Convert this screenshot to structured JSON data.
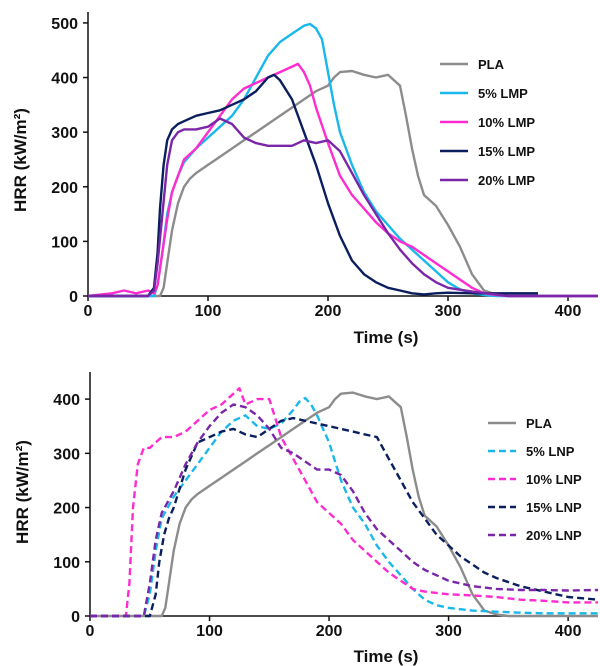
{
  "chart_data": [
    {
      "type": "line",
      "xlabel": "Time (s)",
      "ylabel": "HRR (kW/m²)",
      "xlim": [
        0,
        425
      ],
      "ylim": [
        0,
        520
      ],
      "xticks": [
        0,
        100,
        200,
        300,
        400
      ],
      "yticks": [
        0,
        100,
        200,
        300,
        400,
        500
      ],
      "legend_position": "right",
      "series": [
        {
          "name": "PLA",
          "color": "#8c8c8c",
          "dash": "solid",
          "x": [
            0,
            60,
            63,
            66,
            70,
            75,
            80,
            85,
            90,
            100,
            110,
            120,
            130,
            140,
            150,
            160,
            170,
            180,
            190,
            200,
            205,
            210,
            220,
            230,
            240,
            250,
            255,
            260,
            265,
            270,
            275,
            280,
            290,
            300,
            310,
            320,
            330,
            340,
            350,
            425
          ],
          "y": [
            0,
            0,
            15,
            60,
            120,
            170,
            200,
            215,
            225,
            240,
            255,
            270,
            285,
            300,
            315,
            330,
            345,
            360,
            375,
            385,
            400,
            410,
            412,
            405,
            400,
            405,
            395,
            385,
            330,
            270,
            220,
            185,
            165,
            130,
            90,
            40,
            10,
            3,
            0,
            0
          ]
        },
        {
          "name": "5% LMP",
          "color": "#1ab8ea",
          "dash": "solid",
          "x": [
            0,
            55,
            58,
            62,
            66,
            70,
            75,
            80,
            90,
            100,
            110,
            120,
            130,
            140,
            150,
            160,
            170,
            180,
            185,
            190,
            195,
            200,
            205,
            210,
            220,
            230,
            240,
            250,
            260,
            270,
            280,
            290,
            300,
            310,
            320,
            330,
            340,
            350,
            425
          ],
          "y": [
            0,
            0,
            20,
            80,
            150,
            190,
            220,
            245,
            270,
            290,
            310,
            330,
            360,
            400,
            440,
            465,
            480,
            495,
            498,
            490,
            470,
            410,
            350,
            300,
            240,
            190,
            155,
            130,
            105,
            85,
            65,
            45,
            25,
            12,
            5,
            2,
            0,
            0,
            0
          ]
        },
        {
          "name": "10% LMP",
          "color": "#ff2ccf",
          "dash": "solid",
          "x": [
            0,
            20,
            30,
            40,
            50,
            55,
            58,
            62,
            66,
            70,
            75,
            80,
            90,
            100,
            110,
            120,
            130,
            140,
            150,
            160,
            170,
            175,
            180,
            185,
            190,
            200,
            210,
            220,
            230,
            240,
            250,
            260,
            270,
            280,
            290,
            300,
            310,
            320,
            330,
            340,
            350,
            425
          ],
          "y": [
            0,
            5,
            10,
            5,
            10,
            5,
            20,
            80,
            140,
            190,
            220,
            250,
            270,
            300,
            330,
            360,
            380,
            390,
            400,
            410,
            420,
            425,
            410,
            385,
            345,
            280,
            220,
            185,
            160,
            135,
            115,
            100,
            90,
            75,
            60,
            45,
            30,
            15,
            5,
            2,
            0,
            0
          ]
        },
        {
          "name": "15% LMP",
          "color": "#0b1f5e",
          "dash": "solid",
          "x": [
            0,
            50,
            55,
            58,
            60,
            63,
            66,
            70,
            75,
            80,
            90,
            100,
            110,
            120,
            130,
            140,
            150,
            155,
            160,
            170,
            180,
            190,
            200,
            210,
            220,
            230,
            240,
            250,
            260,
            270,
            280,
            290,
            300,
            320,
            340,
            360,
            375
          ],
          "y": [
            0,
            0,
            15,
            80,
            160,
            240,
            285,
            305,
            315,
            320,
            330,
            335,
            340,
            350,
            360,
            375,
            400,
            405,
            395,
            360,
            300,
            240,
            170,
            110,
            65,
            40,
            25,
            15,
            10,
            5,
            3,
            5,
            6,
            5,
            5,
            5,
            5
          ]
        },
        {
          "name": "20% LMP",
          "color": "#7a26a8",
          "dash": "solid",
          "x": [
            0,
            50,
            55,
            58,
            62,
            66,
            70,
            75,
            80,
            90,
            100,
            110,
            120,
            130,
            140,
            150,
            160,
            170,
            180,
            190,
            200,
            205,
            210,
            220,
            230,
            240,
            250,
            260,
            270,
            280,
            290,
            300,
            320,
            340,
            350,
            425
          ],
          "y": [
            0,
            0,
            10,
            60,
            150,
            240,
            285,
            300,
            305,
            305,
            310,
            325,
            315,
            290,
            280,
            275,
            275,
            275,
            285,
            280,
            285,
            275,
            265,
            225,
            185,
            150,
            115,
            85,
            60,
            40,
            25,
            15,
            8,
            3,
            0,
            0
          ]
        }
      ]
    },
    {
      "type": "line",
      "xlabel": "Time (s)",
      "ylabel": "HRR (kW/m²)",
      "xlim": [
        0,
        425
      ],
      "ylim": [
        0,
        450
      ],
      "xticks": [
        0,
        100,
        200,
        300,
        400
      ],
      "yticks": [
        0,
        100,
        200,
        300,
        400
      ],
      "legend_position": "right",
      "series": [
        {
          "name": "PLA",
          "color": "#8c8c8c",
          "dash": "solid",
          "x": [
            0,
            60,
            63,
            66,
            70,
            75,
            80,
            85,
            90,
            100,
            110,
            120,
            130,
            140,
            150,
            160,
            170,
            180,
            190,
            200,
            205,
            210,
            220,
            230,
            240,
            250,
            255,
            260,
            265,
            270,
            275,
            280,
            290,
            300,
            310,
            320,
            330,
            340,
            350,
            425
          ],
          "y": [
            0,
            0,
            15,
            60,
            120,
            170,
            200,
            215,
            225,
            240,
            255,
            270,
            285,
            300,
            315,
            330,
            345,
            360,
            375,
            385,
            400,
            410,
            412,
            405,
            400,
            405,
            395,
            385,
            330,
            270,
            220,
            185,
            165,
            130,
            90,
            40,
            10,
            3,
            0,
            0
          ]
        },
        {
          "name": "5% LNP",
          "color": "#1ab8ea",
          "dash": "dashed",
          "x": [
            0,
            45,
            50,
            55,
            60,
            65,
            70,
            80,
            90,
            100,
            110,
            120,
            130,
            140,
            150,
            160,
            170,
            175,
            180,
            185,
            190,
            200,
            210,
            220,
            230,
            240,
            250,
            260,
            270,
            280,
            290,
            300,
            320,
            340,
            360,
            380,
            400,
            425
          ],
          "y": [
            0,
            0,
            40,
            120,
            180,
            200,
            220,
            250,
            280,
            310,
            340,
            360,
            370,
            350,
            345,
            355,
            380,
            395,
            402,
            390,
            370,
            320,
            250,
            200,
            170,
            130,
            100,
            75,
            50,
            30,
            20,
            15,
            10,
            8,
            6,
            5,
            5,
            5
          ]
        },
        {
          "name": "10% LNP",
          "color": "#ff2ccf",
          "dash": "dashed",
          "x": [
            0,
            30,
            33,
            36,
            40,
            45,
            50,
            55,
            60,
            70,
            80,
            90,
            100,
            110,
            120,
            125,
            130,
            140,
            150,
            160,
            170,
            180,
            190,
            200,
            210,
            220,
            230,
            240,
            250,
            260,
            270,
            280,
            300,
            320,
            340,
            360,
            380,
            400,
            425
          ],
          "y": [
            0,
            0,
            60,
            200,
            280,
            310,
            310,
            320,
            330,
            330,
            340,
            360,
            380,
            390,
            410,
            420,
            390,
            400,
            400,
            330,
            290,
            250,
            210,
            190,
            170,
            140,
            120,
            100,
            80,
            65,
            50,
            45,
            40,
            38,
            35,
            30,
            28,
            25,
            25
          ]
        },
        {
          "name": "15% LNP",
          "color": "#0b1f5e",
          "dash": "dashed",
          "x": [
            0,
            50,
            55,
            58,
            62,
            66,
            70,
            80,
            90,
            100,
            110,
            120,
            130,
            140,
            150,
            160,
            170,
            180,
            190,
            200,
            210,
            220,
            230,
            240,
            250,
            260,
            270,
            280,
            290,
            300,
            310,
            320,
            330,
            340,
            360,
            380,
            400,
            425
          ],
          "y": [
            0,
            0,
            40,
            100,
            150,
            180,
            200,
            270,
            320,
            330,
            340,
            345,
            335,
            330,
            345,
            360,
            365,
            360,
            355,
            350,
            345,
            340,
            335,
            330,
            290,
            250,
            210,
            180,
            150,
            130,
            110,
            95,
            80,
            70,
            55,
            45,
            35,
            30
          ]
        },
        {
          "name": "20% LNP",
          "color": "#7a26a8",
          "dash": "dashed",
          "x": [
            0,
            45,
            50,
            55,
            60,
            65,
            70,
            80,
            90,
            100,
            110,
            120,
            130,
            140,
            150,
            160,
            170,
            180,
            190,
            200,
            210,
            220,
            230,
            240,
            250,
            260,
            270,
            280,
            290,
            300,
            320,
            340,
            360,
            380,
            400,
            425
          ],
          "y": [
            0,
            0,
            60,
            140,
            190,
            210,
            230,
            280,
            320,
            350,
            375,
            390,
            385,
            370,
            345,
            310,
            300,
            285,
            270,
            270,
            260,
            230,
            190,
            160,
            140,
            120,
            100,
            85,
            75,
            65,
            55,
            50,
            48,
            48,
            47,
            48
          ]
        }
      ]
    }
  ]
}
